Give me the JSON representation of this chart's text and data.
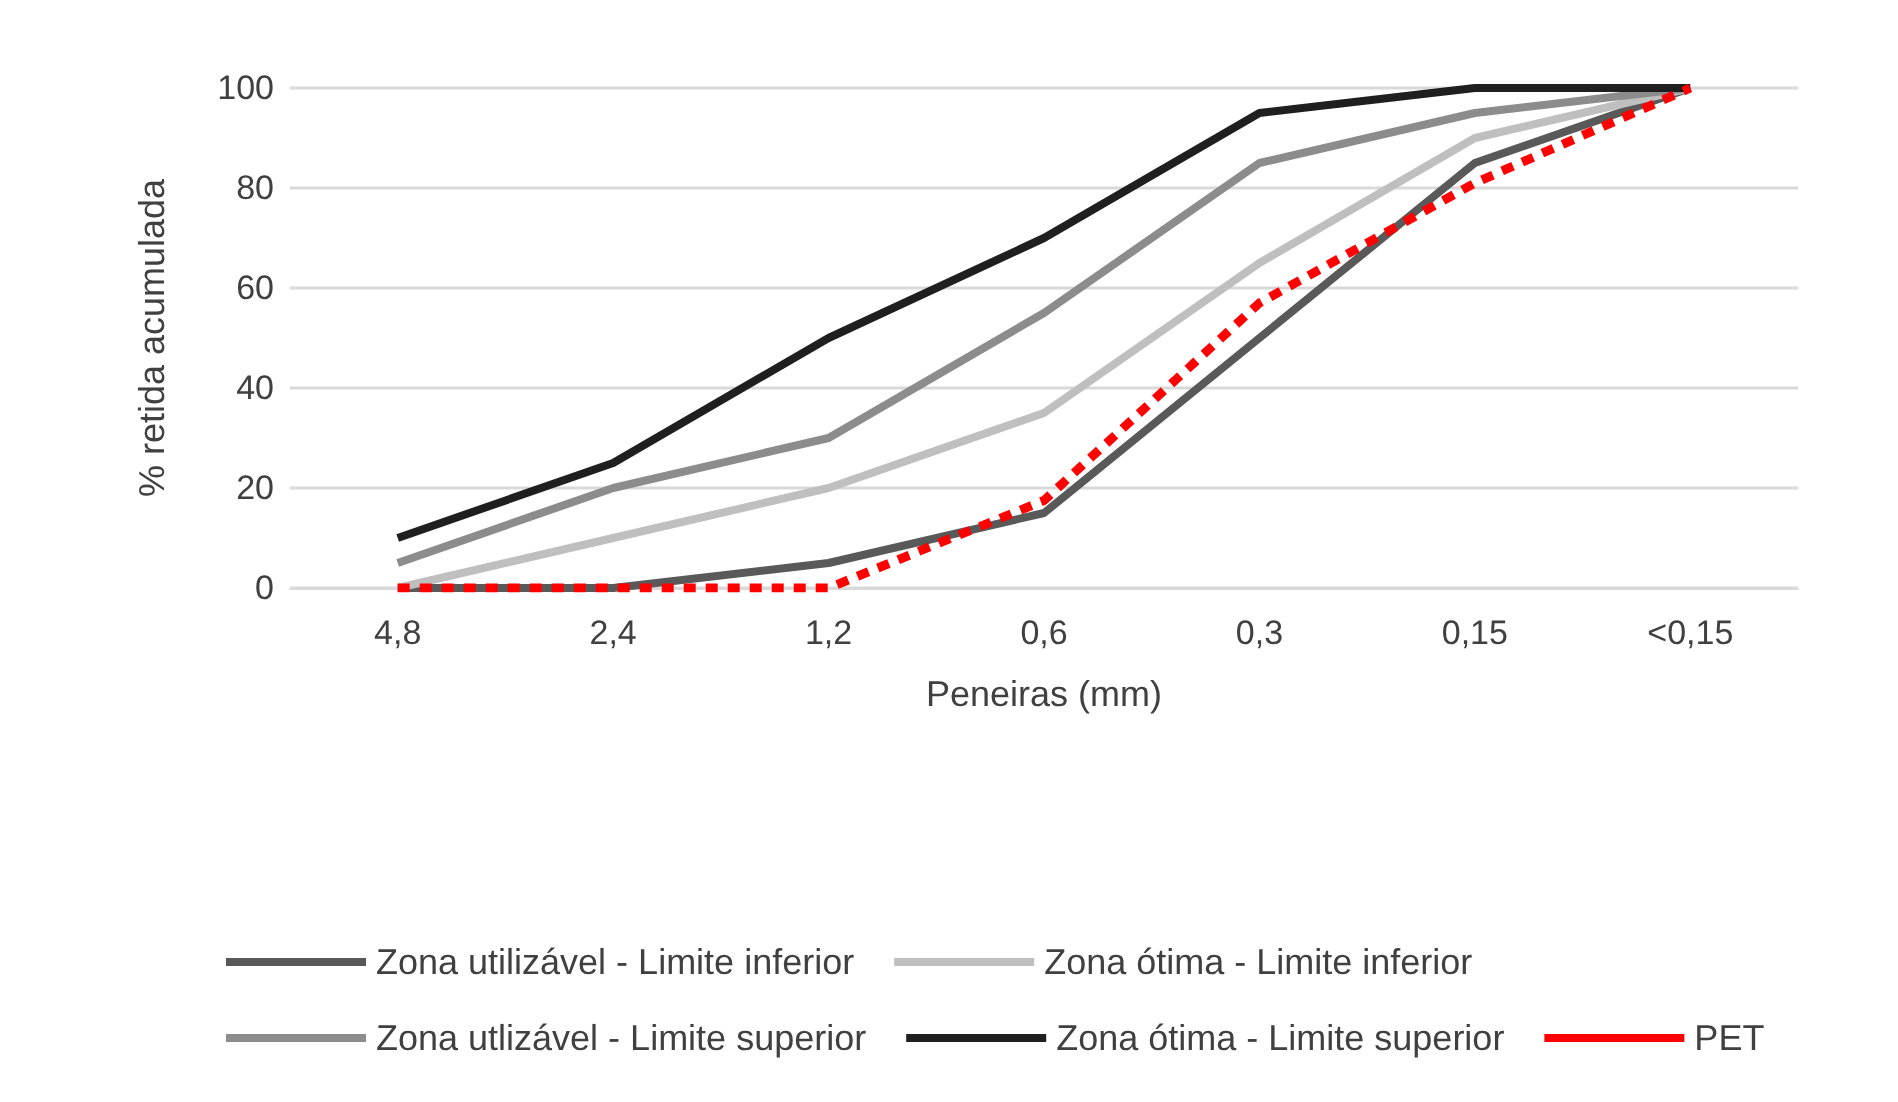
{
  "chart_data": {
    "type": "line",
    "xlabel": "Peneiras (mm)",
    "ylabel": "% retida acumulada",
    "categories": [
      "4,8",
      "2,4",
      "1,2",
      "0,6",
      "0,3",
      "0,15",
      "<0,15"
    ],
    "series": [
      {
        "name": "Zona utilizável - Limite inferior",
        "color": "#595959",
        "values": [
          0,
          0,
          5,
          15,
          50,
          85,
          100
        ]
      },
      {
        "name": "Zona ótima - Limite inferior",
        "color": "#bfbfbf",
        "values": [
          0,
          10,
          20,
          35,
          65,
          90,
          100
        ]
      },
      {
        "name": "Zona utlizável - Limite superior",
        "color": "#8c8c8c",
        "values": [
          5,
          20,
          30,
          55,
          85,
          95,
          100
        ]
      },
      {
        "name": "Zona ótima - Limite superior",
        "color": "#1f1f1f",
        "values": [
          10,
          25,
          50,
          70,
          95,
          100,
          100
        ]
      },
      {
        "name": "PET",
        "color": "#ff0000",
        "values": [
          0,
          0,
          0,
          17.5,
          57,
          81,
          100
        ],
        "line_style": "dashed"
      }
    ],
    "ylim": [
      0,
      100
    ],
    "yticks": [
      0,
      20,
      40,
      60,
      80,
      100
    ],
    "grid": "y",
    "legend": "bottom",
    "marker": "none",
    "line_style": "solid"
  }
}
